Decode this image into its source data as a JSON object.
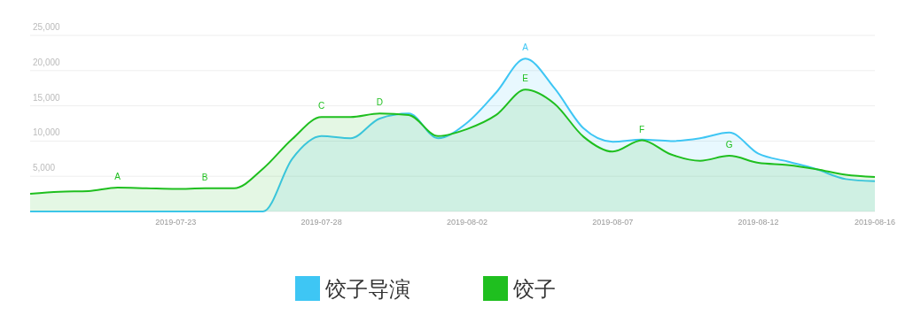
{
  "chart_data": {
    "type": "area",
    "x": [
      "2019-07-18",
      "2019-07-19",
      "2019-07-20",
      "2019-07-21",
      "2019-07-22",
      "2019-07-23",
      "2019-07-24",
      "2019-07-25",
      "2019-07-26",
      "2019-07-27",
      "2019-07-28",
      "2019-07-29",
      "2019-07-30",
      "2019-07-31",
      "2019-08-01",
      "2019-08-02",
      "2019-08-03",
      "2019-08-04",
      "2019-08-05",
      "2019-08-06",
      "2019-08-07",
      "2019-08-08",
      "2019-08-09",
      "2019-08-10",
      "2019-08-11",
      "2019-08-12",
      "2019-08-13",
      "2019-08-14",
      "2019-08-15",
      "2019-08-16"
    ],
    "series": [
      {
        "name": "饺子导演",
        "color": "#3ec6f4",
        "values": [
          0,
          0,
          0,
          0,
          0,
          0,
          0,
          0,
          0,
          7500,
          10700,
          10400,
          13200,
          13900,
          10400,
          12600,
          16900,
          21700,
          17500,
          11800,
          9900,
          10200,
          10000,
          10400,
          11200,
          8200,
          7100,
          6000,
          4600,
          4300
        ]
      },
      {
        "name": "饺子",
        "color": "#1fbf1f",
        "values": [
          2500,
          2800,
          2900,
          3400,
          3300,
          3200,
          3300,
          3300,
          6100,
          10300,
          13400,
          13400,
          13900,
          13700,
          10700,
          11700,
          13700,
          17300,
          15300,
          10600,
          8500,
          10100,
          8100,
          7200,
          7900,
          6900,
          6600,
          6000,
          5200,
          4900
        ]
      }
    ],
    "xlim": [
      "2019-07-18",
      "2019-08-16"
    ],
    "xticks": [
      {
        "value": "2019-07-23",
        "label": "2019-07-23"
      },
      {
        "value": "2019-07-28",
        "label": "2019-07-28"
      },
      {
        "value": "2019-08-02",
        "label": "2019-08-02"
      },
      {
        "value": "2019-08-07",
        "label": "2019-08-07"
      },
      {
        "value": "2019-08-12",
        "label": "2019-08-12"
      },
      {
        "value": "2019-08-16",
        "label": "2019-08-16"
      }
    ],
    "ylim": [
      0,
      25000
    ],
    "yticks": [
      {
        "value": 5000,
        "label": "5,000"
      },
      {
        "value": 10000,
        "label": "10,000"
      },
      {
        "value": 15000,
        "label": "15,000"
      },
      {
        "value": 20000,
        "label": "20,000"
      },
      {
        "value": 25000,
        "label": "25,000"
      }
    ],
    "grid": "y",
    "legend": "bottom",
    "annotations": [
      {
        "text": "A",
        "x": "2019-07-21",
        "y": 3400
      },
      {
        "text": "B",
        "x": "2019-07-24",
        "y": 3300
      },
      {
        "text": "C",
        "x": "2019-07-28",
        "y": 13400
      },
      {
        "text": "D",
        "x": "2019-07-30",
        "y": 13900
      },
      {
        "text": "A",
        "x": "2019-08-04",
        "y": 21700
      },
      {
        "text": "E",
        "x": "2019-08-04",
        "y": 17300
      },
      {
        "text": "F",
        "x": "2019-08-08",
        "y": 10100
      },
      {
        "text": "G",
        "x": "2019-08-11",
        "y": 7900
      }
    ]
  }
}
